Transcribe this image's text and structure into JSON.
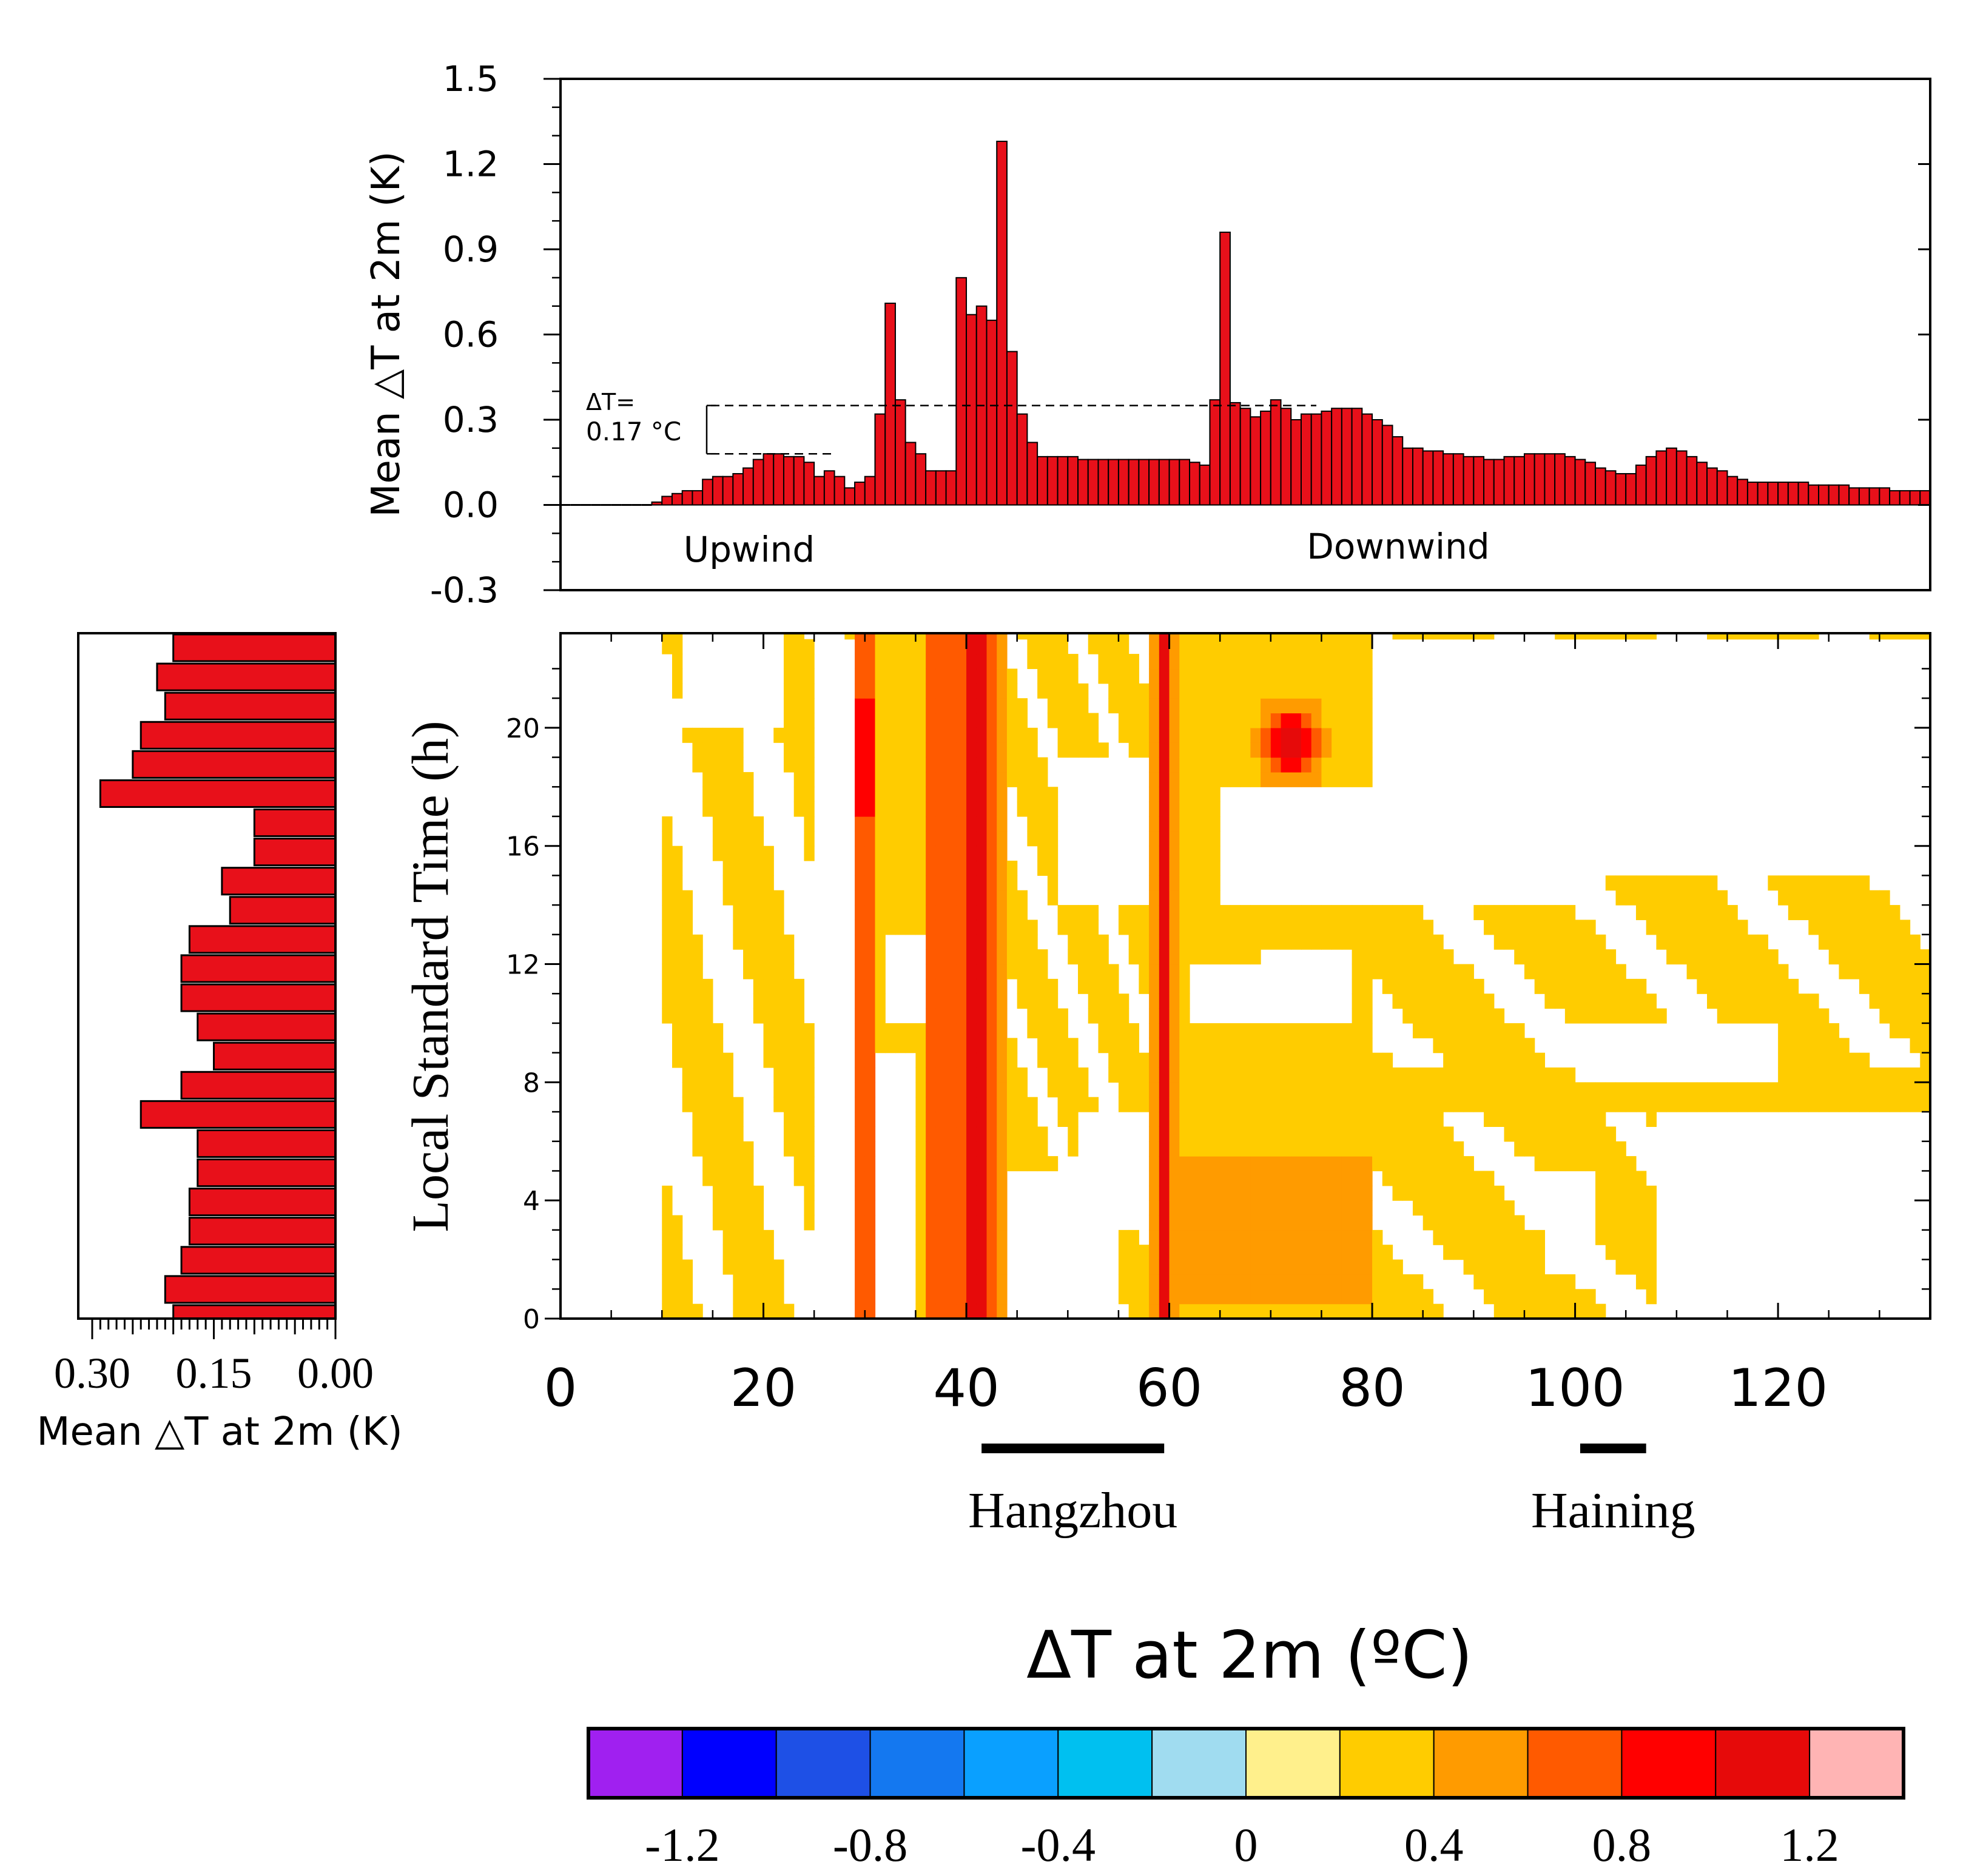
{
  "chart_data": [
    {
      "id": "top-bar",
      "type": "bar",
      "ylabel": "Mean △T at 2m (K)",
      "ylim": [
        -0.3,
        1.5
      ],
      "yticks": [
        -0.3,
        0.0,
        0.3,
        0.6,
        0.9,
        1.2,
        1.5
      ],
      "ytick_labels": [
        "-0.3",
        "0.0",
        "0.3",
        "0.6",
        "0.9",
        "1.2",
        "1.5"
      ],
      "xlim": [
        0,
        135
      ],
      "bar_width": 1,
      "values": [
        0,
        0,
        0,
        0,
        0,
        0,
        0,
        0,
        0,
        0.01,
        0.03,
        0.04,
        0.05,
        0.05,
        0.09,
        0.1,
        0.1,
        0.11,
        0.13,
        0.16,
        0.18,
        0.18,
        0.17,
        0.17,
        0.15,
        0.1,
        0.12,
        0.1,
        0.06,
        0.08,
        0.1,
        0.32,
        0.71,
        0.37,
        0.22,
        0.18,
        0.12,
        0.12,
        0.12,
        0.8,
        0.67,
        0.7,
        0.65,
        1.28,
        0.54,
        0.32,
        0.22,
        0.17,
        0.17,
        0.17,
        0.17,
        0.16,
        0.16,
        0.16,
        0.16,
        0.16,
        0.16,
        0.16,
        0.16,
        0.16,
        0.16,
        0.16,
        0.15,
        0.14,
        0.37,
        0.96,
        0.36,
        0.34,
        0.31,
        0.33,
        0.37,
        0.34,
        0.3,
        0.32,
        0.32,
        0.33,
        0.34,
        0.34,
        0.34,
        0.32,
        0.3,
        0.28,
        0.24,
        0.2,
        0.2,
        0.19,
        0.19,
        0.18,
        0.18,
        0.17,
        0.17,
        0.16,
        0.16,
        0.17,
        0.17,
        0.18,
        0.18,
        0.18,
        0.18,
        0.17,
        0.16,
        0.15,
        0.13,
        0.12,
        0.11,
        0.11,
        0.14,
        0.17,
        0.19,
        0.2,
        0.19,
        0.17,
        0.15,
        0.13,
        0.12,
        0.1,
        0.09,
        0.08,
        0.08,
        0.08,
        0.08,
        0.08,
        0.08,
        0.07,
        0.07,
        0.07,
        0.07,
        0.06,
        0.06,
        0.06,
        0.06,
        0.05,
        0.05,
        0.05,
        0.05
      ],
      "annotations": {
        "delta_label_line1": "ΔT=",
        "delta_label_line2": "0.17 °C",
        "delta_value": 0.17,
        "upwind_mean": 0.18,
        "downwind_mean": 0.35,
        "upwind": "Upwind",
        "downwind": "Downwind"
      },
      "color": "#e8101a"
    },
    {
      "id": "left-bar",
      "type": "bar",
      "orientation": "horizontal",
      "xlabel": "Mean △T at 2m (K)",
      "xlim": [
        0.3,
        0.0
      ],
      "xticks": [
        0.3,
        0.15,
        0.0
      ],
      "xtick_labels": [
        "0.30",
        "0.15",
        "0.00"
      ],
      "hours": [
        0,
        1,
        2,
        3,
        4,
        5,
        6,
        7,
        8,
        9,
        10,
        11,
        12,
        13,
        14,
        15,
        16,
        17,
        18,
        19,
        20,
        21,
        22,
        23
      ],
      "values": [
        0.2,
        0.21,
        0.19,
        0.18,
        0.18,
        0.17,
        0.17,
        0.24,
        0.19,
        0.15,
        0.17,
        0.19,
        0.19,
        0.18,
        0.13,
        0.14,
        0.1,
        0.1,
        0.29,
        0.25,
        0.24,
        0.21,
        0.22,
        0.2
      ],
      "color": "#e8101a"
    },
    {
      "id": "heatmap",
      "type": "heatmap",
      "xlabel": "",
      "ylabel": "Local Standard Time (h)",
      "xlim": [
        0,
        135
      ],
      "ylim": [
        0,
        23
      ],
      "xticks": [
        0,
        20,
        40,
        60,
        80,
        100,
        120
      ],
      "xtick_labels": [
        "0",
        "20",
        "40",
        "60",
        "80",
        "100",
        "120"
      ],
      "yticks": [
        0,
        4,
        8,
        12,
        16,
        20
      ],
      "ytick_labels": [
        "0",
        "4",
        "8",
        "12",
        "16",
        "20"
      ],
      "city_segments": [
        {
          "name": "Hangzhou",
          "x0": 41.5,
          "x1": 59.5
        },
        {
          "name": "Haining",
          "x0": 100.5,
          "x1": 107
        }
      ],
      "colorbar": {
        "title": "ΔT at 2m (ºC)",
        "boundaries": [
          -1.4,
          -1.2,
          -1.0,
          -0.8,
          -0.6,
          -0.4,
          -0.2,
          0,
          0.2,
          0.4,
          0.6,
          0.8,
          1.0,
          1.2,
          1.4
        ],
        "colors": [
          "#a020f0",
          "#0000ff",
          "#1e50e6",
          "#1478f0",
          "#0aa0ff",
          "#00c0f0",
          "#a0dcf0",
          "#fff08c",
          "#ffcc00",
          "#ff9b00",
          "#ff5a00",
          "#ff0000",
          "#e60a0a",
          "#ffb4b4"
        ],
        "tick_values": [
          -1.2,
          -0.8,
          -0.4,
          0,
          0.4,
          0.8,
          1.2
        ],
        "tick_labels": [
          "-1.2",
          "-0.8",
          "-0.4",
          "0",
          "0.4",
          "0.8",
          "1.2"
        ]
      }
    }
  ]
}
